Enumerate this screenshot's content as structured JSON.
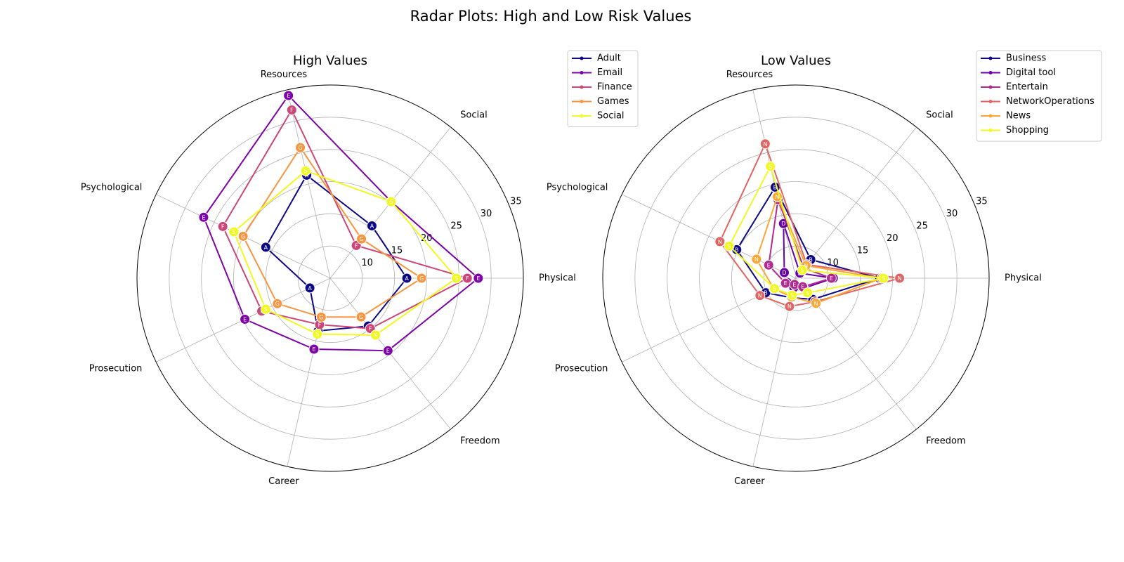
{
  "title": "Radar Plots: High and Low Risk Values",
  "chart_data": [
    {
      "type": "radar",
      "title": "High Values",
      "categories": [
        "Physical",
        "Social",
        "Resources",
        "Psychological",
        "Prosecution",
        "Career",
        "Freedom"
      ],
      "ylim": [
        5,
        35
      ],
      "yticks": [
        10,
        15,
        20,
        25,
        30,
        35
      ],
      "grid": true,
      "legend": "outside upper right",
      "series": [
        {
          "name": "Adult",
          "marker": "A",
          "color": "#0d0887",
          "values": [
            16.9,
            15.4,
            21.4,
            16.1,
            8.5,
            13.4,
            14.5
          ]
        },
        {
          "name": "Email",
          "marker": "E",
          "color": "#7e03a8",
          "values": [
            28.0,
            20.2,
            34.1,
            26.8,
            19.7,
            16.3,
            19.4
          ]
        },
        {
          "name": "Finance",
          "marker": "F",
          "color": "#cc4778",
          "values": [
            26.3,
            11.5,
            31.8,
            23.5,
            16.8,
            12.4,
            15.0
          ]
        },
        {
          "name": "Games",
          "marker": "G",
          "color": "#f89540",
          "values": [
            19.2,
            12.8,
            25.8,
            20.0,
            14.1,
            11.2,
            12.7
          ]
        },
        {
          "name": "Social",
          "marker": "S",
          "color": "#f0f921",
          "values": [
            24.6,
            20.2,
            22.1,
            21.6,
            16.1,
            13.9,
            16.3
          ]
        }
      ]
    },
    {
      "type": "radar",
      "title": "Low Values",
      "categories": [
        "Physical",
        "Social",
        "Resources",
        "Psychological",
        "Prosecution",
        "Career",
        "Freedom"
      ],
      "ylim": [
        5,
        35
      ],
      "yticks": [
        10,
        15,
        20,
        25,
        30,
        35
      ],
      "grid": true,
      "legend": "outside upper right",
      "series": [
        {
          "name": "Business",
          "marker": "B",
          "color": "#0d0887",
          "values": [
            18.0,
            8.7,
            19.5,
            15.2,
            10.2,
            8.1,
            9.2
          ]
        },
        {
          "name": "Digital tool",
          "marker": "D",
          "color": "#6a00a8",
          "values": [
            10.8,
            6.0,
            13.7,
            7.0,
            6.5,
            6.5,
            7.0
          ]
        },
        {
          "name": "Entertain",
          "marker": "E",
          "color": "#b12a90",
          "values": [
            10.5,
            7.0,
            17.5,
            9.7,
            6.8,
            6.0,
            6.7
          ]
        },
        {
          "name": "NetworkOperations",
          "marker": "N",
          "color": "#e16462",
          "values": [
            21.1,
            7.7,
            26.4,
            18.1,
            11.2,
            9.5,
            9.7
          ]
        },
        {
          "name": "News",
          "marker": "N",
          "color": "#fca636",
          "values": [
            18.3,
            7.5,
            18.0,
            11.8,
            8.8,
            8.0,
            10.0
          ]
        },
        {
          "name": "Shopping",
          "marker": "S",
          "color": "#f0f921",
          "values": [
            18.6,
            6.6,
            22.8,
            16.5,
            8.7,
            7.7,
            7.9
          ]
        }
      ]
    }
  ]
}
